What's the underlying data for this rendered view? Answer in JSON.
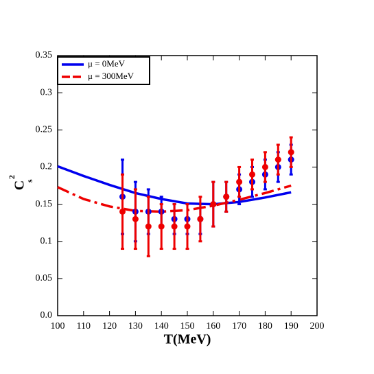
{
  "chart_data": {
    "type": "line",
    "xlabel": "T(MeV)",
    "ylabel": {
      "base": "C",
      "sub": "s",
      "sup": "2"
    },
    "xlim": [
      100,
      200
    ],
    "xticks": [
      100,
      110,
      120,
      130,
      140,
      150,
      160,
      170,
      180,
      190,
      200
    ],
    "ylim": [
      0,
      0.35
    ],
    "yticks": [
      {
        "value": 0,
        "label": "0.0"
      },
      0.05,
      0.1,
      0.15,
      0.2,
      0.25,
      0.3,
      0.35
    ],
    "legend": "upper left",
    "series": [
      {
        "name": "μ = 0MeV",
        "color": "#0000ee",
        "style": "solid",
        "mark": "line",
        "x": [
          100,
          110,
          120,
          130,
          140,
          150,
          160,
          170,
          180,
          190
        ],
        "values": [
          0.201,
          0.188,
          0.176,
          0.165,
          0.157,
          0.151,
          0.15,
          0.153,
          0.159,
          0.166
        ]
      },
      {
        "name": "μ = 300MeV",
        "color": "#ee0000",
        "style": "dashed",
        "mark": "line",
        "x": [
          100,
          110,
          120,
          130,
          140,
          150,
          160,
          170,
          180,
          190
        ],
        "values": [
          0.173,
          0.157,
          0.147,
          0.141,
          0.14,
          0.142,
          0.148,
          0.156,
          0.165,
          0.175
        ]
      },
      {
        "color": "#0000ee",
        "mark": "errorbar",
        "x": [
          125,
          130,
          135,
          140,
          145,
          150,
          155,
          160,
          165,
          170,
          175,
          180,
          185,
          190
        ],
        "values": [
          0.16,
          0.14,
          0.14,
          0.14,
          0.13,
          0.13,
          0.13,
          0.15,
          0.16,
          0.17,
          0.18,
          0.19,
          0.2,
          0.21
        ],
        "errors": [
          0.05,
          0.04,
          0.03,
          0.02,
          0.02,
          0.02,
          0.02,
          0.03,
          0.02,
          0.02,
          0.02,
          0.02,
          0.02,
          0.02
        ]
      },
      {
        "color": "#ee0000",
        "mark": "errorbar",
        "x": [
          125,
          130,
          135,
          140,
          145,
          150,
          155,
          160,
          165,
          170,
          175,
          180,
          185,
          190
        ],
        "values": [
          0.14,
          0.13,
          0.12,
          0.12,
          0.12,
          0.12,
          0.13,
          0.15,
          0.16,
          0.18,
          0.19,
          0.2,
          0.21,
          0.22
        ],
        "errors": [
          0.05,
          0.04,
          0.04,
          0.03,
          0.03,
          0.03,
          0.03,
          0.03,
          0.02,
          0.02,
          0.02,
          0.02,
          0.02,
          0.02
        ]
      }
    ]
  }
}
